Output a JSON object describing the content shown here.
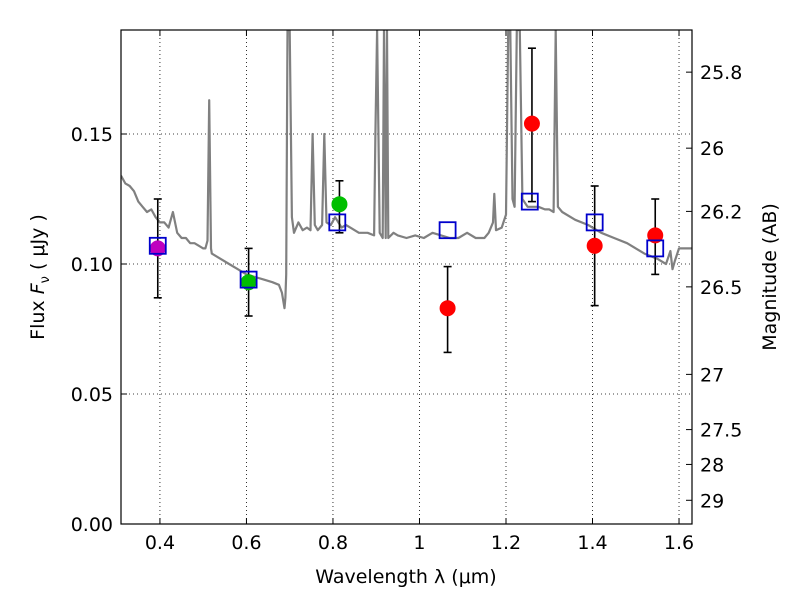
{
  "chart_data": {
    "type": "scatter",
    "title": "",
    "xlabel": "Wavelength  λ (μm)",
    "ylabel": "Flux  F_ν  ( μJy )",
    "ylabel_parts": {
      "prefix": "Flux  ",
      "symbol": "F",
      "subscript": "ν",
      "suffix": "  ( μJy )"
    },
    "y2label": "Magnitude (AB)",
    "xlim": [
      0.31,
      1.63
    ],
    "ylim": [
      0.0,
      0.19
    ],
    "grid": true,
    "x_ticks": [
      0.4,
      0.6,
      0.8,
      1.0,
      1.2,
      1.4,
      1.6
    ],
    "x_tick_labels": [
      "0.4",
      "0.6",
      "0.8",
      "1",
      "1.2",
      "1.4",
      "1.6"
    ],
    "y_ticks": [
      0.0,
      0.05,
      0.1,
      0.15
    ],
    "y_tick_labels": [
      "0.00",
      "0.05",
      "0.10",
      "0.15"
    ],
    "mag_ticks": [
      25.8,
      26,
      26.2,
      26.5,
      27,
      27.5,
      28,
      29
    ],
    "mag_tick_labels": [
      "25.8",
      "26",
      "26.2",
      "26.5",
      "27",
      "27.5",
      "28",
      "29"
    ],
    "colors": {
      "spectrum": "#808080",
      "model_box": "#0000cc",
      "obs_magenta": "#bf00bf",
      "obs_green": "#00bf00",
      "obs_red": "#ff0000",
      "errorbar": "#000000"
    },
    "model_photometry": [
      {
        "x": 0.395,
        "y": 0.107
      },
      {
        "x": 0.605,
        "y": 0.094
      },
      {
        "x": 0.81,
        "y": 0.116
      },
      {
        "x": 1.065,
        "y": 0.113
      },
      {
        "x": 1.255,
        "y": 0.124
      },
      {
        "x": 1.405,
        "y": 0.116
      },
      {
        "x": 1.545,
        "y": 0.106
      }
    ],
    "observed_photometry": [
      {
        "x": 0.395,
        "y": 0.106,
        "err_lo": 0.087,
        "err_hi": 0.125,
        "color": "obs_magenta"
      },
      {
        "x": 0.605,
        "y": 0.093,
        "err_lo": 0.08,
        "err_hi": 0.106,
        "color": "obs_green"
      },
      {
        "x": 0.815,
        "y": 0.123,
        "err_lo": 0.112,
        "err_hi": 0.132,
        "color": "obs_green"
      },
      {
        "x": 1.065,
        "y": 0.083,
        "err_lo": 0.066,
        "err_hi": 0.099,
        "color": "obs_red"
      },
      {
        "x": 1.26,
        "y": 0.154,
        "err_lo": 0.124,
        "err_hi": 0.183,
        "color": "obs_red"
      },
      {
        "x": 1.405,
        "y": 0.107,
        "err_lo": 0.084,
        "err_hi": 0.13,
        "color": "obs_red"
      },
      {
        "x": 1.545,
        "y": 0.111,
        "err_lo": 0.096,
        "err_hi": 0.125,
        "color": "obs_red"
      }
    ],
    "spectrum": [
      [
        0.31,
        0.134
      ],
      [
        0.32,
        0.131
      ],
      [
        0.33,
        0.13
      ],
      [
        0.34,
        0.128
      ],
      [
        0.35,
        0.124
      ],
      [
        0.36,
        0.122
      ],
      [
        0.37,
        0.12
      ],
      [
        0.38,
        0.121
      ],
      [
        0.39,
        0.118
      ],
      [
        0.4,
        0.116
      ],
      [
        0.41,
        0.116
      ],
      [
        0.42,
        0.114
      ],
      [
        0.43,
        0.12
      ],
      [
        0.44,
        0.112
      ],
      [
        0.45,
        0.11
      ],
      [
        0.46,
        0.11
      ],
      [
        0.47,
        0.108
      ],
      [
        0.48,
        0.108
      ],
      [
        0.49,
        0.107
      ],
      [
        0.5,
        0.106
      ],
      [
        0.505,
        0.106
      ],
      [
        0.51,
        0.109
      ],
      [
        0.514,
        0.163
      ],
      [
        0.518,
        0.106
      ],
      [
        0.52,
        0.104
      ],
      [
        0.54,
        0.102
      ],
      [
        0.56,
        0.1
      ],
      [
        0.58,
        0.098
      ],
      [
        0.6,
        0.096
      ],
      [
        0.62,
        0.095
      ],
      [
        0.64,
        0.094
      ],
      [
        0.66,
        0.093
      ],
      [
        0.675,
        0.092
      ],
      [
        0.682,
        0.089
      ],
      [
        0.688,
        0.083
      ],
      [
        0.69,
        0.087
      ],
      [
        0.692,
        0.096
      ],
      [
        0.695,
        0.19
      ],
      [
        0.7,
        0.19
      ],
      [
        0.705,
        0.118
      ],
      [
        0.71,
        0.112
      ],
      [
        0.72,
        0.116
      ],
      [
        0.73,
        0.113
      ],
      [
        0.74,
        0.114
      ],
      [
        0.748,
        0.113
      ],
      [
        0.753,
        0.15
      ],
      [
        0.758,
        0.115
      ],
      [
        0.765,
        0.113
      ],
      [
        0.775,
        0.115
      ],
      [
        0.78,
        0.15
      ],
      [
        0.785,
        0.116
      ],
      [
        0.795,
        0.115
      ],
      [
        0.805,
        0.118
      ],
      [
        0.82,
        0.114
      ],
      [
        0.83,
        0.115
      ],
      [
        0.84,
        0.114
      ],
      [
        0.86,
        0.112
      ],
      [
        0.88,
        0.112
      ],
      [
        0.895,
        0.111
      ],
      [
        0.898,
        0.15
      ],
      [
        0.902,
        0.19
      ],
      [
        0.908,
        0.112
      ],
      [
        0.915,
        0.11
      ],
      [
        0.918,
        0.19
      ],
      [
        0.922,
        0.11
      ],
      [
        0.925,
        0.19
      ],
      [
        0.928,
        0.11
      ],
      [
        0.94,
        0.112
      ],
      [
        0.95,
        0.111
      ],
      [
        0.97,
        0.11
      ],
      [
        0.99,
        0.111
      ],
      [
        1.01,
        0.11
      ],
      [
        1.03,
        0.112
      ],
      [
        1.05,
        0.111
      ],
      [
        1.07,
        0.11
      ],
      [
        1.09,
        0.11
      ],
      [
        1.11,
        0.112
      ],
      [
        1.13,
        0.11
      ],
      [
        1.15,
        0.11
      ],
      [
        1.16,
        0.112
      ],
      [
        1.17,
        0.116
      ],
      [
        1.173,
        0.127
      ],
      [
        1.177,
        0.113
      ],
      [
        1.19,
        0.114
      ],
      [
        1.2,
        0.119
      ],
      [
        1.205,
        0.19
      ],
      [
        1.21,
        0.19
      ],
      [
        1.215,
        0.125
      ],
      [
        1.22,
        0.122
      ],
      [
        1.225,
        0.19
      ],
      [
        1.232,
        0.19
      ],
      [
        1.238,
        0.125
      ],
      [
        1.25,
        0.122
      ],
      [
        1.26,
        0.122
      ],
      [
        1.275,
        0.122
      ],
      [
        1.29,
        0.121
      ],
      [
        1.3,
        0.121
      ],
      [
        1.31,
        0.12
      ],
      [
        1.315,
        0.19
      ],
      [
        1.32,
        0.122
      ],
      [
        1.33,
        0.12
      ],
      [
        1.36,
        0.117
      ],
      [
        1.39,
        0.115
      ],
      [
        1.42,
        0.112
      ],
      [
        1.45,
        0.11
      ],
      [
        1.48,
        0.108
      ],
      [
        1.5,
        0.106
      ],
      [
        1.52,
        0.104
      ],
      [
        1.55,
        0.102
      ],
      [
        1.57,
        0.1
      ],
      [
        1.58,
        0.105
      ],
      [
        1.585,
        0.098
      ],
      [
        1.59,
        0.101
      ],
      [
        1.6,
        0.106
      ],
      [
        1.61,
        0.106
      ],
      [
        1.63,
        0.106
      ]
    ]
  }
}
